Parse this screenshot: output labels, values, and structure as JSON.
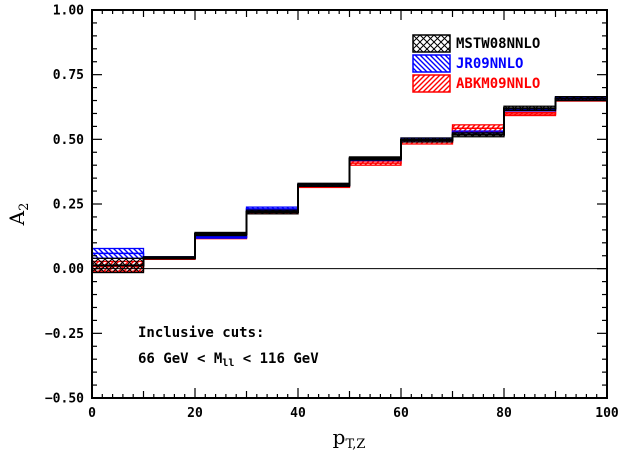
{
  "chart_data": {
    "type": "histogram-band",
    "xlabel": "p",
    "xlabel_sub": "T,Z",
    "ylabel": "A",
    "ylabel_sub": "2",
    "xlim": [
      0,
      100
    ],
    "ylim": [
      -0.5,
      1.0
    ],
    "x_ticks": [
      0,
      20,
      40,
      60,
      80,
      100
    ],
    "x_tick_labels": [
      "0",
      "20",
      "40",
      "60",
      "80",
      "100"
    ],
    "y_ticks": [
      -0.5,
      -0.25,
      0,
      0.25,
      0.5,
      0.75,
      1.0
    ],
    "y_tick_labels": [
      "−0.50",
      "−0.25",
      "0.00",
      "0.25",
      "0.50",
      "0.75",
      "1.00"
    ],
    "bins": [
      [
        0,
        10
      ],
      [
        10,
        20
      ],
      [
        20,
        30
      ],
      [
        30,
        40
      ],
      [
        40,
        50
      ],
      [
        50,
        60
      ],
      [
        60,
        70
      ],
      [
        70,
        80
      ],
      [
        80,
        90
      ],
      [
        90,
        100
      ]
    ],
    "series": [
      {
        "name": "MSTW08NNLO",
        "color": "#000000",
        "hatch": "crosshatch",
        "lower": [
          -0.015,
          0.038,
          0.128,
          0.212,
          0.318,
          0.42,
          0.49,
          0.51,
          0.612,
          0.65
        ],
        "upper": [
          0.04,
          0.046,
          0.14,
          0.226,
          0.33,
          0.432,
          0.505,
          0.525,
          0.628,
          0.665
        ]
      },
      {
        "name": "JR09NNLO",
        "color": "#0000ff",
        "hatch": "diagonal-down",
        "lower": [
          0.04,
          0.04,
          0.118,
          0.224,
          0.32,
          0.418,
          0.495,
          0.518,
          0.61,
          0.655
        ],
        "upper": [
          0.078,
          0.046,
          0.126,
          0.238,
          0.328,
          0.428,
          0.505,
          0.532,
          0.62,
          0.665
        ]
      },
      {
        "name": "ABKM09NNLO",
        "color": "#ff0000",
        "hatch": "diagonal-up",
        "lower": [
          -0.01,
          0.036,
          0.116,
          0.212,
          0.314,
          0.4,
          0.482,
          0.53,
          0.592,
          0.648
        ],
        "upper": [
          0.028,
          0.042,
          0.126,
          0.226,
          0.326,
          0.416,
          0.498,
          0.556,
          0.604,
          0.658
        ]
      }
    ],
    "legend_position": "top-right",
    "annotations": [
      "Inclusive cuts:",
      "66 GeV < M",
      "ll",
      " < 116 GeV"
    ]
  }
}
